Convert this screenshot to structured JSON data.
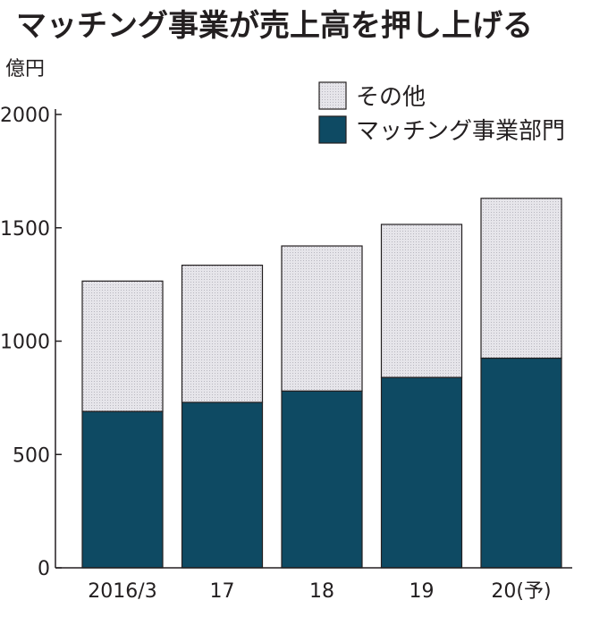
{
  "chart_data": {
    "type": "bar",
    "stacked": true,
    "title": "マッチング事業が売上高を押し上げる",
    "ylabel": "億円",
    "xlabel": "",
    "categories": [
      "2016/3",
      "17",
      "18",
      "19",
      "20(予)"
    ],
    "ylim": [
      0,
      2000
    ],
    "yticks": [
      0,
      500,
      1000,
      1500,
      2000
    ],
    "grid": false,
    "legend_position": "top-right",
    "series": [
      {
        "name": "マッチング事業部門",
        "values": [
          690,
          730,
          780,
          840,
          925
        ],
        "color": "#0e4a63"
      },
      {
        "name": "その他",
        "values": [
          575,
          605,
          640,
          675,
          705
        ],
        "color": "#e4e3e8"
      }
    ]
  }
}
